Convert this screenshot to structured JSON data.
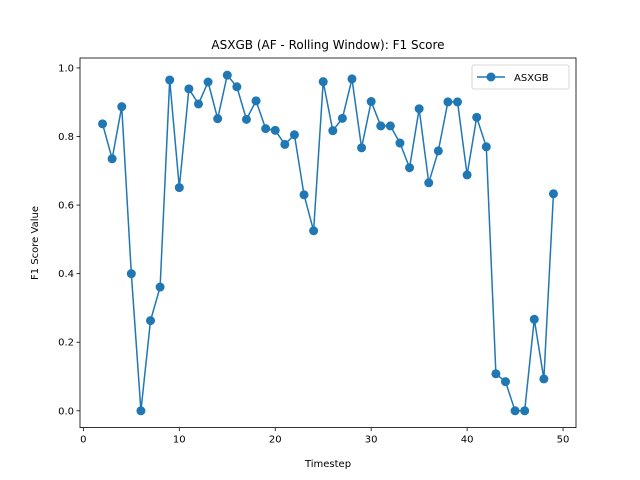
{
  "chart_data": {
    "type": "line",
    "title": "ASXGB (AF - Rolling Window): F1 Score",
    "xlabel": "Timestep",
    "ylabel": "F1 Score Value",
    "xlim": [
      -0.35,
      51.35
    ],
    "ylim": [
      -0.049,
      1.029
    ],
    "xticks": [
      0,
      10,
      20,
      30,
      40,
      50
    ],
    "yticks": [
      0.0,
      0.2,
      0.4,
      0.6,
      0.8,
      1.0
    ],
    "xtick_labels": [
      "0",
      "10",
      "20",
      "30",
      "40",
      "50"
    ],
    "ytick_labels": [
      "0.0",
      "0.2",
      "0.4",
      "0.6",
      "0.8",
      "1.0"
    ],
    "grid": false,
    "legend": "top-right",
    "series": [
      {
        "name": "ASXGB",
        "color": "#1f77b4",
        "marker": "circle",
        "x": [
          2,
          3,
          4,
          5,
          6,
          7,
          8,
          9,
          10,
          11,
          12,
          13,
          14,
          15,
          16,
          17,
          18,
          19,
          20,
          21,
          22,
          23,
          24,
          25,
          26,
          27,
          28,
          29,
          30,
          31,
          32,
          33,
          34,
          35,
          36,
          37,
          38,
          39,
          40,
          41,
          42,
          43,
          44,
          45,
          46,
          47,
          48,
          49
        ],
        "y": [
          0.837,
          0.735,
          0.887,
          0.4,
          0.0,
          0.263,
          0.361,
          0.965,
          0.651,
          0.939,
          0.895,
          0.959,
          0.852,
          0.979,
          0.945,
          0.85,
          0.904,
          0.823,
          0.818,
          0.777,
          0.805,
          0.63,
          0.525,
          0.96,
          0.817,
          0.853,
          0.968,
          0.767,
          0.902,
          0.831,
          0.831,
          0.781,
          0.709,
          0.881,
          0.665,
          0.758,
          0.901,
          0.901,
          0.688,
          0.856,
          0.77,
          0.108,
          0.085,
          0.0,
          0.0,
          0.267,
          0.093,
          0.633
        ]
      }
    ]
  }
}
